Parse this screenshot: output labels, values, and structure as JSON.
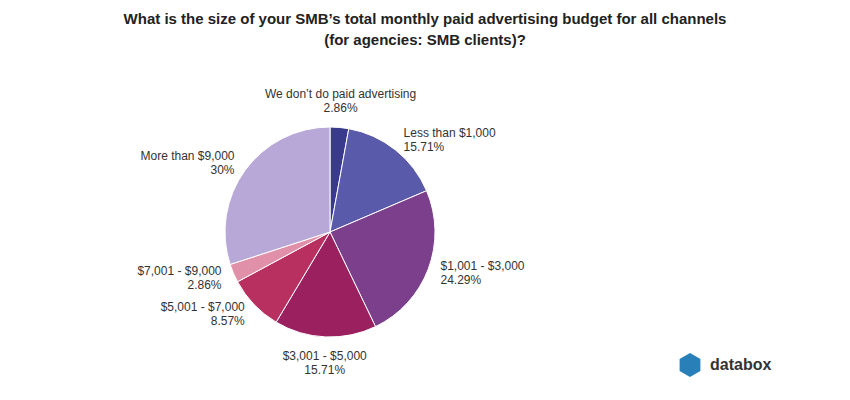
{
  "chart_data": {
    "type": "pie",
    "title": "What is the size of your SMB’s total monthly paid advertising budget for all channels\n(for agencies: SMB clients)?",
    "categories": [
      "We don’t do paid advertising",
      "Less than $1,000",
      "$1,001 - $3,000",
      "$3,001 - $5,000",
      "$5,001 - $7,000",
      "$7,001 - $9,000",
      "More than $9,000"
    ],
    "values": [
      2.86,
      15.71,
      24.29,
      15.71,
      8.57,
      2.86,
      30.0
    ],
    "value_labels": [
      "2.86%",
      "15.71%",
      "24.29%",
      "15.71%",
      "8.57%",
      "2.86%",
      "30%"
    ],
    "colors": [
      "#3a3a8c",
      "#5a5aaa",
      "#7b3f8c",
      "#9b2060",
      "#b83060",
      "#e090a8",
      "#b8a8d8"
    ],
    "data_labels": true,
    "annotations": [
      "databox"
    ]
  }
}
